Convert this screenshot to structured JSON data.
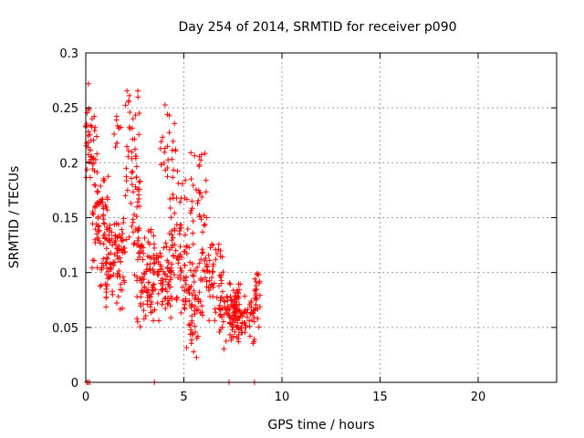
{
  "chart_data": {
    "type": "scatter",
    "title": "Day 254 of 2014, SRMTID for receiver p090",
    "xlabel": "GPS time / hours",
    "ylabel": "SRMTID / TECUs",
    "xlim": [
      0,
      24
    ],
    "ylim": [
      0,
      0.3
    ],
    "xticks": [
      "0",
      "5",
      "10",
      "15",
      "20"
    ],
    "xtick_values": [
      0,
      5,
      10,
      15,
      20
    ],
    "yticks": [
      "0",
      "0.05",
      "0.1",
      "0.15",
      "0.2",
      "0.25",
      "0.3"
    ],
    "ytick_values": [
      0,
      0.05,
      0.1,
      0.15,
      0.2,
      0.25,
      0.3
    ],
    "grid": true,
    "marker": "+",
    "color": "#ff0000",
    "zero_points_x": [
      0.05,
      0.12,
      0.2,
      3.5,
      7.3,
      8.6
    ],
    "clusters": [
      {
        "x": [
          0.0,
          0.6
        ],
        "y": [
          0.14,
          0.28
        ],
        "n": 45
      },
      {
        "x": [
          0.3,
          1.2
        ],
        "y": [
          0.08,
          0.2
        ],
        "n": 80
      },
      {
        "x": [
          1.0,
          2.0
        ],
        "y": [
          0.06,
          0.16
        ],
        "n": 90
      },
      {
        "x": [
          1.4,
          1.8
        ],
        "y": [
          0.2,
          0.25
        ],
        "n": 10
      },
      {
        "x": [
          2.0,
          2.8
        ],
        "y": [
          0.08,
          0.29
        ],
        "n": 70
      },
      {
        "x": [
          2.6,
          3.5
        ],
        "y": [
          0.04,
          0.15
        ],
        "n": 80
      },
      {
        "x": [
          3.4,
          4.4
        ],
        "y": [
          0.05,
          0.14
        ],
        "n": 80
      },
      {
        "x": [
          3.8,
          4.6
        ],
        "y": [
          0.15,
          0.27
        ],
        "n": 25
      },
      {
        "x": [
          4.3,
          5.2
        ],
        "y": [
          0.05,
          0.2
        ],
        "n": 70
      },
      {
        "x": [
          5.0,
          5.8
        ],
        "y": [
          0.02,
          0.13
        ],
        "n": 60
      },
      {
        "x": [
          5.3,
          6.2
        ],
        "y": [
          0.1,
          0.23
        ],
        "n": 35
      },
      {
        "x": [
          5.8,
          7.0
        ],
        "y": [
          0.05,
          0.14
        ],
        "n": 70
      },
      {
        "x": [
          6.8,
          7.8
        ],
        "y": [
          0.03,
          0.1
        ],
        "n": 60
      },
      {
        "x": [
          7.4,
          8.6
        ],
        "y": [
          0.03,
          0.09
        ],
        "n": 90
      },
      {
        "x": [
          8.6,
          8.9
        ],
        "y": [
          0.05,
          0.11
        ],
        "n": 25
      }
    ]
  }
}
